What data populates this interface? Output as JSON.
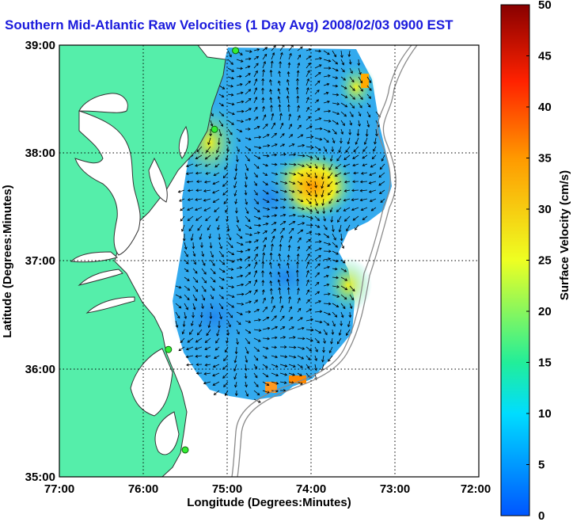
{
  "title": "Southern Mid-Atlantic Raw Velocities (1 Day Avg) 2008/02/03 0900 EST",
  "map": {
    "xlabel": "Longitude (Degrees:Minutes)",
    "ylabel": "Latitude (Degrees:Minutes)",
    "x_ticks": [
      "77:00",
      "76:00",
      "75:00",
      "74:00",
      "73:00",
      "72:00"
    ],
    "y_ticks": [
      "39:00",
      "38:00",
      "37:00",
      "36:00",
      "35:00"
    ],
    "xlim": [
      -77,
      -72
    ],
    "ylim": [
      35,
      39
    ],
    "land_color": "#55eeaa",
    "grid": "dotted"
  },
  "colorbar": {
    "label": "Surface Velocity (cm/s)",
    "ticks": [
      "0",
      "5",
      "10",
      "15",
      "20",
      "25",
      "30",
      "35",
      "40",
      "45",
      "50"
    ],
    "range": [
      0,
      50
    ]
  },
  "stations": [
    {
      "lon": -74.9,
      "lat": 38.95
    },
    {
      "lon": -75.15,
      "lat": 38.22
    },
    {
      "lon": -75.7,
      "lat": 36.18
    },
    {
      "lon": -75.5,
      "lat": 35.25
    }
  ]
}
